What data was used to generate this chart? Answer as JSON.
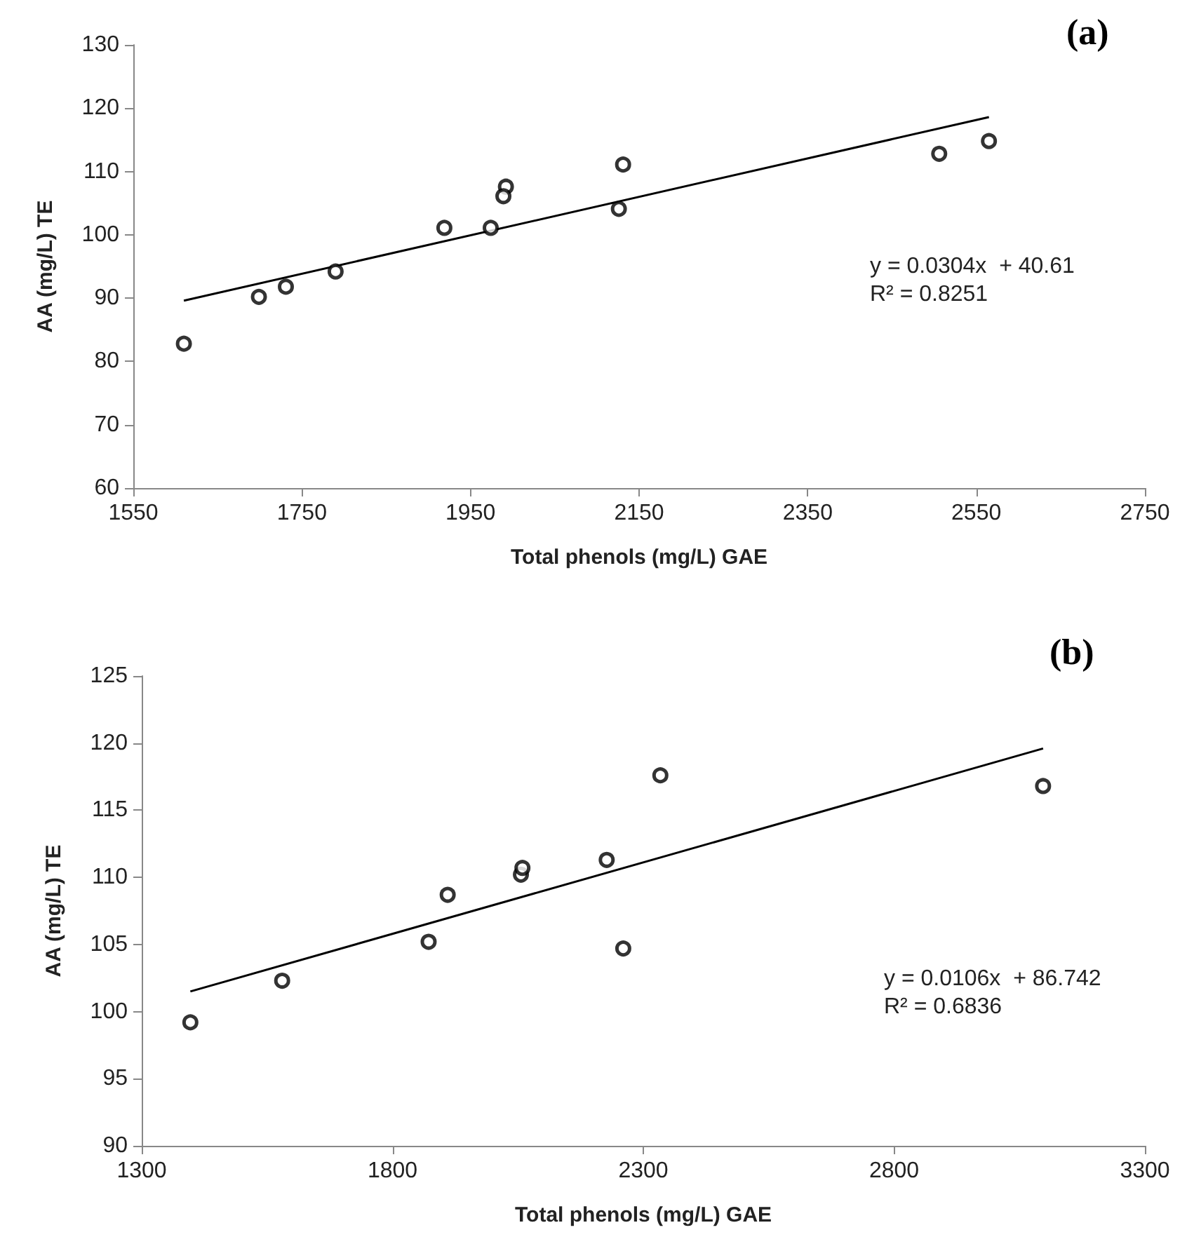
{
  "chart_data": [
    {
      "type": "scatter",
      "xlabel": "Total phenols (mg/L) GAE",
      "ylabel": "AA (mg/L) TE",
      "annotations": [
        "(a)",
        "y = 0.0304x  + 40.61",
        "R² = 0.8251"
      ],
      "xlim": [
        1550,
        2750
      ],
      "xticks": [
        1550,
        1750,
        1950,
        2150,
        2350,
        2550,
        2750
      ],
      "ylim": [
        60,
        130
      ],
      "yticks": [
        60,
        70,
        80,
        90,
        100,
        110,
        120,
        130
      ],
      "grid": false,
      "marker": "circle",
      "series": [
        {
          "color": "#000000",
          "x": [
            1610,
            1699,
            1731,
            1790,
            1919,
            1974,
            1992,
            1989,
            2131,
            2126,
            2506,
            2565
          ],
          "values": [
            82.8,
            90.2,
            91.8,
            94.2,
            101.1,
            101.1,
            107.6,
            106.1,
            111.1,
            104.1,
            112.8,
            114.8
          ]
        },
        {
          "type": "line",
          "marker": "none",
          "color": "#000000",
          "x": [
            1610,
            2565
          ],
          "values": [
            89.6,
            118.6
          ]
        }
      ]
    },
    {
      "type": "scatter",
      "xlabel": "Total phenols (mg/L) GAE",
      "ylabel": "AA (mg/L) TE",
      "annotations": [
        "(b)",
        "y = 0.0106x  + 86.742",
        "R² = 0.6836"
      ],
      "xlim": [
        1300,
        3300
      ],
      "xticks": [
        1300,
        1800,
        2300,
        2800,
        3300
      ],
      "ylim": [
        90,
        125
      ],
      "yticks": [
        90,
        95,
        100,
        105,
        110,
        115,
        120,
        125
      ],
      "grid": false,
      "marker": "circle",
      "series": [
        {
          "color": "#000000",
          "x": [
            1397,
            1580,
            1872,
            1910,
            2056,
            2059,
            2227,
            2260,
            2334,
            3097
          ],
          "values": [
            99.2,
            102.3,
            105.2,
            108.7,
            110.2,
            110.7,
            111.3,
            104.7,
            117.6,
            116.8
          ]
        },
        {
          "type": "line",
          "marker": "none",
          "color": "#000000",
          "x": [
            1397,
            3097
          ],
          "values": [
            101.5,
            119.6
          ]
        }
      ]
    }
  ]
}
